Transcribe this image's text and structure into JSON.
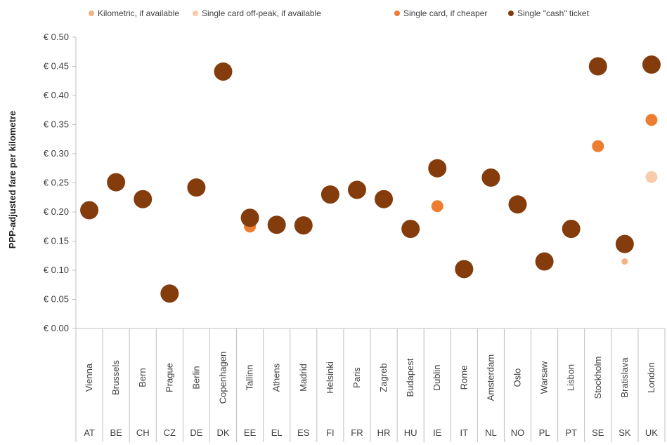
{
  "chart_data": {
    "type": "scatter",
    "title": "",
    "xlabel": "",
    "ylabel": "PPP-adjusted fare per kilometre",
    "ylim": [
      0,
      0.5
    ],
    "yticks": [
      "€ 0.00",
      "€ 0.05",
      "€ 0.10",
      "€ 0.15",
      "€ 0.20",
      "€ 0.25",
      "€ 0.30",
      "€ 0.35",
      "€ 0.40",
      "€ 0.45",
      "€ 0.50"
    ],
    "grid": false,
    "legend_position": "top",
    "cities": [
      "Vienna",
      "Brussels",
      "Bern",
      "Prague",
      "Berlin",
      "Copenhagen",
      "Tallinn",
      "Athens",
      "Madrid",
      "Helsinki",
      "Paris",
      "Zagreb",
      "Budapest",
      "Dublin",
      "Rome",
      "Amsterdam",
      "Oslo",
      "Warsaw",
      "Lisbon",
      "Stockholm",
      "Bratislava",
      "London"
    ],
    "countries": [
      "AT",
      "BE",
      "CH",
      "CZ",
      "DE",
      "DK",
      "EE",
      "EL",
      "ES",
      "FI",
      "FR",
      "HR",
      "HU",
      "IE",
      "IT",
      "NL",
      "NO",
      "PL",
      "PT",
      "SE",
      "SK",
      "UK"
    ],
    "series": [
      {
        "name": "Kilometric, if available",
        "color": "#f4b183",
        "marker": "small",
        "values": [
          null,
          null,
          null,
          null,
          null,
          null,
          null,
          null,
          null,
          null,
          null,
          null,
          null,
          null,
          null,
          null,
          null,
          null,
          null,
          null,
          0.115,
          null
        ]
      },
      {
        "name": "Single card off-peak, if available",
        "color": "#f8cbad",
        "marker": "medium",
        "values": [
          null,
          null,
          null,
          null,
          null,
          null,
          null,
          null,
          null,
          null,
          null,
          null,
          null,
          null,
          null,
          null,
          null,
          null,
          null,
          null,
          null,
          0.26
        ]
      },
      {
        "name": "Single card, if cheaper",
        "color": "#ed7d31",
        "marker": "medium",
        "values": [
          null,
          null,
          null,
          null,
          null,
          null,
          0.175,
          null,
          null,
          null,
          null,
          null,
          null,
          0.21,
          null,
          null,
          null,
          null,
          null,
          0.313,
          null,
          0.358
        ]
      },
      {
        "name": "Single \"cash\" ticket",
        "color": "#843c0c",
        "marker": "large",
        "values": [
          0.203,
          0.251,
          0.222,
          0.06,
          0.242,
          0.441,
          0.19,
          0.178,
          0.177,
          0.23,
          0.238,
          0.222,
          0.171,
          0.275,
          0.102,
          0.259,
          0.213,
          0.115,
          0.171,
          0.45,
          0.145,
          0.453
        ]
      }
    ]
  }
}
